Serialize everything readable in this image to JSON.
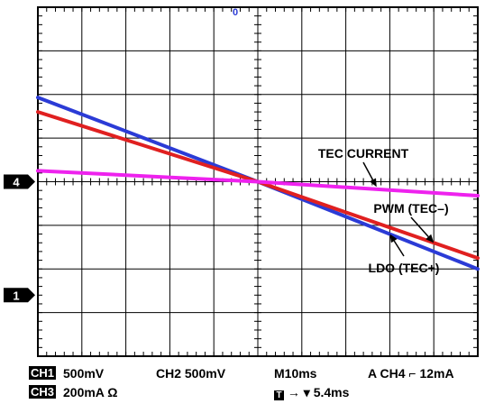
{
  "chart_data": {
    "type": "line",
    "title": "",
    "xlabel": "",
    "ylabel": "",
    "divisions": {
      "x": 10,
      "y": 8
    },
    "xlim": [
      -5,
      5
    ],
    "ylim": [
      -4,
      4
    ],
    "grid": true,
    "series": [
      {
        "key": "ldo",
        "color": "#2b3bd6",
        "x": [
          -5,
          0,
          5
        ],
        "y": [
          1.93,
          0,
          -2.0
        ]
      },
      {
        "key": "pwm",
        "color": "#e02020",
        "x": [
          -5,
          0,
          5
        ],
        "y": [
          1.6,
          0,
          -1.75
        ]
      },
      {
        "key": "tec",
        "color": "#ee22ee",
        "x": [
          -5,
          0,
          5
        ],
        "y": [
          0.25,
          0,
          -0.32
        ]
      }
    ],
    "annotations": [
      {
        "key": "tec",
        "text": "TEC CURRENT",
        "target": [
          2.7,
          -0.12
        ]
      },
      {
        "key": "pwm",
        "text": "PWM (TEC–)",
        "target": [
          4.0,
          -1.4
        ]
      },
      {
        "key": "ldo",
        "text": "LDO (TEC+)",
        "target": [
          3.0,
          -1.2
        ]
      }
    ],
    "channel_markers": [
      {
        "label": "4",
        "y": 0
      },
      {
        "label": "1",
        "y": -2.6
      }
    ],
    "trigger_marker": "0"
  },
  "status": {
    "ch1_badge": "CH1",
    "ch1_scale": "500mV",
    "ch2": "CH2 500mV",
    "timebase": "M10ms",
    "trigger": "A  CH4 ⌐ 12mA",
    "ch3_badge": "CH3",
    "ch3_scale": "200mA Ω",
    "trig_box": "T",
    "trig_pos": "→ ▾ 5.4ms"
  },
  "colors": {
    "grid": "#000000",
    "background": "#ffffff"
  }
}
